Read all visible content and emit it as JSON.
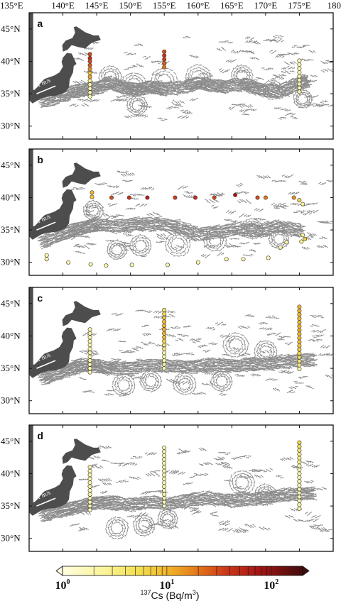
{
  "longitude_labels": [
    "135°E",
    "140°E",
    "145°E",
    "150°E",
    "155°E",
    "160°E",
    "165°E",
    "170°E",
    "175°E",
    "180"
  ],
  "latitude_labels": [
    "45°N",
    "40°N",
    "35°N",
    "30°N"
  ],
  "scale_arrow_label": "1 m/s",
  "colorbar": {
    "tick_labels": [
      "10",
      "10",
      "10"
    ],
    "tick_exponents": [
      "0",
      "1",
      "2"
    ],
    "title_prefix": "137",
    "title_main": "Cs (Bq/m",
    "title_exp": "3",
    "title_suffix": ")",
    "scale": "log",
    "range": [
      1,
      200
    ]
  },
  "colors": {
    "land": "#4d4d4d",
    "vectors": "#8c8c8c",
    "marker_low": "#fffbd0",
    "marker_mid": "#e8a020",
    "marker_high": "#b01010",
    "marker_max": "#4a0c0c"
  },
  "panels": [
    {
      "letter": "a",
      "stations": [
        {
          "lon": 144,
          "lat": 41.1,
          "cs": 30
        },
        {
          "lon": 144,
          "lat": 40.5,
          "cs": 45
        },
        {
          "lon": 144,
          "lat": 40.0,
          "cs": 30
        },
        {
          "lon": 144,
          "lat": 39.4,
          "cs": 25
        },
        {
          "lon": 144,
          "lat": 38.8,
          "cs": 15
        },
        {
          "lon": 144,
          "lat": 38.2,
          "cs": 8
        },
        {
          "lon": 144,
          "lat": 37.6,
          "cs": 12
        },
        {
          "lon": 144,
          "lat": 37.0,
          "cs": 3
        },
        {
          "lon": 144,
          "lat": 36.4,
          "cs": 2
        },
        {
          "lon": 144,
          "lat": 35.8,
          "cs": 2
        },
        {
          "lon": 144,
          "lat": 35.2,
          "cs": 2
        },
        {
          "lon": 144,
          "lat": 34.6,
          "cs": 2
        },
        {
          "lon": 155,
          "lat": 41.5,
          "cs": 30
        },
        {
          "lon": 155,
          "lat": 40.9,
          "cs": 40
        },
        {
          "lon": 155,
          "lat": 40.3,
          "cs": 35
        },
        {
          "lon": 155,
          "lat": 39.7,
          "cs": 25
        },
        {
          "lon": 155,
          "lat": 39.1,
          "cs": 20
        },
        {
          "lon": 175,
          "lat": 40.1,
          "cs": 2
        },
        {
          "lon": 175,
          "lat": 39.5,
          "cs": 2
        },
        {
          "lon": 175,
          "lat": 38.9,
          "cs": 2
        },
        {
          "lon": 175,
          "lat": 38.3,
          "cs": 2
        },
        {
          "lon": 175,
          "lat": 37.7,
          "cs": 2
        },
        {
          "lon": 175,
          "lat": 37.1,
          "cs": 2
        },
        {
          "lon": 175,
          "lat": 36.5,
          "cs": 2
        },
        {
          "lon": 175,
          "lat": 35.9,
          "cs": 2
        },
        {
          "lon": 175,
          "lat": 35.3,
          "cs": 2
        }
      ]
    },
    {
      "letter": "b",
      "stations": [
        {
          "lon": 144.3,
          "lat": 40.8,
          "cs": 10
        },
        {
          "lon": 144.3,
          "lat": 40.1,
          "cs": 8
        },
        {
          "lon": 147.2,
          "lat": 40.0,
          "cs": 30
        },
        {
          "lon": 149.8,
          "lat": 40.0,
          "cs": 40
        },
        {
          "lon": 152.5,
          "lat": 40.0,
          "cs": 60
        },
        {
          "lon": 156.6,
          "lat": 40.0,
          "cs": 35
        },
        {
          "lon": 159.6,
          "lat": 40.0,
          "cs": 45
        },
        {
          "lon": 162.4,
          "lat": 40.0,
          "cs": 30
        },
        {
          "lon": 165.5,
          "lat": 40.4,
          "cs": 70
        },
        {
          "lon": 168.8,
          "lat": 40.0,
          "cs": 30
        },
        {
          "lon": 170.0,
          "lat": 40.0,
          "cs": 20
        },
        {
          "lon": 174.2,
          "lat": 40.0,
          "cs": 15
        },
        {
          "lon": 175.0,
          "lat": 39.6,
          "cs": 6
        },
        {
          "lon": 175.5,
          "lat": 39.0,
          "cs": 3
        },
        {
          "lon": 175.5,
          "lat": 34.2,
          "cs": 3
        },
        {
          "lon": 175.8,
          "lat": 33.6,
          "cs": 7
        },
        {
          "lon": 175.3,
          "lat": 33.2,
          "cs": 3
        },
        {
          "lon": 173.1,
          "lat": 33.1,
          "cs": 2
        },
        {
          "lon": 172.2,
          "lat": 32.3,
          "cs": 2
        },
        {
          "lon": 170.4,
          "lat": 30.7,
          "cs": 2
        },
        {
          "lon": 166.7,
          "lat": 30.5,
          "cs": 2
        },
        {
          "lon": 164.2,
          "lat": 30.5,
          "cs": 2
        },
        {
          "lon": 160.0,
          "lat": 30.0,
          "cs": 2
        },
        {
          "lon": 155.5,
          "lat": 29.6,
          "cs": 2
        },
        {
          "lon": 150.2,
          "lat": 29.6,
          "cs": 2
        },
        {
          "lon": 146.4,
          "lat": 29.5,
          "cs": 2
        },
        {
          "lon": 144.1,
          "lat": 29.7,
          "cs": 2
        },
        {
          "lon": 140.8,
          "lat": 30.0,
          "cs": 2
        },
        {
          "lon": 137.6,
          "lat": 30.5,
          "cs": 2
        },
        {
          "lon": 137.6,
          "lat": 31.1,
          "cs": 2
        }
      ]
    },
    {
      "letter": "c",
      "stations": [
        {
          "lon": 144,
          "lat": 41.0,
          "cs": 2
        },
        {
          "lon": 144,
          "lat": 40.4,
          "cs": 2
        },
        {
          "lon": 144,
          "lat": 39.8,
          "cs": 2
        },
        {
          "lon": 144,
          "lat": 39.2,
          "cs": 2
        },
        {
          "lon": 144,
          "lat": 38.6,
          "cs": 2
        },
        {
          "lon": 144,
          "lat": 38.0,
          "cs": 2
        },
        {
          "lon": 144,
          "lat": 37.4,
          "cs": 2
        },
        {
          "lon": 144,
          "lat": 36.8,
          "cs": 2
        },
        {
          "lon": 144,
          "lat": 36.2,
          "cs": 2
        },
        {
          "lon": 144,
          "lat": 35.6,
          "cs": 2
        },
        {
          "lon": 144,
          "lat": 35.0,
          "cs": 2
        },
        {
          "lon": 144,
          "lat": 34.4,
          "cs": 2
        },
        {
          "lon": 155,
          "lat": 44.0,
          "cs": 4
        },
        {
          "lon": 155,
          "lat": 43.4,
          "cs": 5
        },
        {
          "lon": 155,
          "lat": 42.8,
          "cs": 8
        },
        {
          "lon": 155,
          "lat": 42.2,
          "cs": 9
        },
        {
          "lon": 155,
          "lat": 41.6,
          "cs": 10
        },
        {
          "lon": 155,
          "lat": 41.0,
          "cs": 10
        },
        {
          "lon": 155,
          "lat": 40.4,
          "cs": 10
        },
        {
          "lon": 155,
          "lat": 39.8,
          "cs": 9
        },
        {
          "lon": 155,
          "lat": 39.2,
          "cs": 6
        },
        {
          "lon": 155,
          "lat": 38.6,
          "cs": 4
        },
        {
          "lon": 155,
          "lat": 38.0,
          "cs": 3
        },
        {
          "lon": 155,
          "lat": 37.4,
          "cs": 2
        },
        {
          "lon": 155,
          "lat": 36.8,
          "cs": 2
        },
        {
          "lon": 155,
          "lat": 36.2,
          "cs": 2
        },
        {
          "lon": 155,
          "lat": 35.6,
          "cs": 2
        },
        {
          "lon": 155,
          "lat": 35.0,
          "cs": 2
        },
        {
          "lon": 175,
          "lat": 44.5,
          "cs": 10
        },
        {
          "lon": 175,
          "lat": 43.9,
          "cs": 10
        },
        {
          "lon": 175,
          "lat": 43.3,
          "cs": 10
        },
        {
          "lon": 175,
          "lat": 42.7,
          "cs": 9
        },
        {
          "lon": 175,
          "lat": 42.1,
          "cs": 9
        },
        {
          "lon": 175,
          "lat": 41.5,
          "cs": 10
        },
        {
          "lon": 175,
          "lat": 40.9,
          "cs": 11
        },
        {
          "lon": 175,
          "lat": 40.3,
          "cs": 10
        },
        {
          "lon": 175,
          "lat": 39.7,
          "cs": 9
        },
        {
          "lon": 175,
          "lat": 39.1,
          "cs": 9
        },
        {
          "lon": 175,
          "lat": 38.5,
          "cs": 8
        },
        {
          "lon": 175,
          "lat": 37.9,
          "cs": 7
        },
        {
          "lon": 175,
          "lat": 37.3,
          "cs": 6
        },
        {
          "lon": 175,
          "lat": 36.7,
          "cs": 5
        },
        {
          "lon": 175,
          "lat": 36.1,
          "cs": 4
        },
        {
          "lon": 175,
          "lat": 35.5,
          "cs": 3
        },
        {
          "lon": 175,
          "lat": 34.9,
          "cs": 2
        }
      ]
    },
    {
      "letter": "d",
      "stations": [
        {
          "lon": 144,
          "lat": 41.0,
          "cs": 2
        },
        {
          "lon": 144,
          "lat": 40.4,
          "cs": 2
        },
        {
          "lon": 144,
          "lat": 39.8,
          "cs": 2
        },
        {
          "lon": 144,
          "lat": 39.2,
          "cs": 2
        },
        {
          "lon": 144,
          "lat": 38.6,
          "cs": 2
        },
        {
          "lon": 144,
          "lat": 38.0,
          "cs": 2
        },
        {
          "lon": 144,
          "lat": 37.4,
          "cs": 2
        },
        {
          "lon": 144,
          "lat": 36.8,
          "cs": 2
        },
        {
          "lon": 144,
          "lat": 36.2,
          "cs": 2
        },
        {
          "lon": 144,
          "lat": 35.6,
          "cs": 2
        },
        {
          "lon": 144,
          "lat": 35.0,
          "cs": 2
        },
        {
          "lon": 144,
          "lat": 34.4,
          "cs": 1.5
        },
        {
          "lon": 155,
          "lat": 44.0,
          "cs": 2
        },
        {
          "lon": 155,
          "lat": 43.4,
          "cs": 2
        },
        {
          "lon": 155,
          "lat": 42.8,
          "cs": 2
        },
        {
          "lon": 155,
          "lat": 42.2,
          "cs": 2
        },
        {
          "lon": 155,
          "lat": 41.6,
          "cs": 2
        },
        {
          "lon": 155,
          "lat": 41.0,
          "cs": 2
        },
        {
          "lon": 155,
          "lat": 40.4,
          "cs": 2
        },
        {
          "lon": 155,
          "lat": 39.8,
          "cs": 2
        },
        {
          "lon": 155,
          "lat": 39.2,
          "cs": 2
        },
        {
          "lon": 155,
          "lat": 38.6,
          "cs": 2
        },
        {
          "lon": 155,
          "lat": 38.0,
          "cs": 2
        },
        {
          "lon": 155,
          "lat": 37.4,
          "cs": 2
        },
        {
          "lon": 155,
          "lat": 36.8,
          "cs": 2
        },
        {
          "lon": 155,
          "lat": 36.2,
          "cs": 2
        },
        {
          "lon": 155,
          "lat": 35.6,
          "cs": 2
        },
        {
          "lon": 155,
          "lat": 35.0,
          "cs": 1.5
        },
        {
          "lon": 175,
          "lat": 44.8,
          "cs": 6
        },
        {
          "lon": 175,
          "lat": 44.2,
          "cs": 5
        },
        {
          "lon": 175,
          "lat": 43.6,
          "cs": 4
        },
        {
          "lon": 175,
          "lat": 43.0,
          "cs": 3
        },
        {
          "lon": 175,
          "lat": 42.4,
          "cs": 3
        },
        {
          "lon": 175,
          "lat": 41.8,
          "cs": 3
        },
        {
          "lon": 175,
          "lat": 41.2,
          "cs": 2
        },
        {
          "lon": 175,
          "lat": 40.6,
          "cs": 2
        },
        {
          "lon": 175,
          "lat": 40.0,
          "cs": 2
        },
        {
          "lon": 175,
          "lat": 39.4,
          "cs": 2
        },
        {
          "lon": 175,
          "lat": 38.8,
          "cs": 2
        },
        {
          "lon": 175,
          "lat": 38.2,
          "cs": 2
        },
        {
          "lon": 175,
          "lat": 37.6,
          "cs": 2
        },
        {
          "lon": 175,
          "lat": 37.0,
          "cs": 2
        },
        {
          "lon": 175,
          "lat": 36.4,
          "cs": 2
        },
        {
          "lon": 175,
          "lat": 35.8,
          "cs": 2
        },
        {
          "lon": 175,
          "lat": 35.2,
          "cs": 2
        },
        {
          "lon": 175,
          "lat": 34.6,
          "cs": 2
        }
      ]
    }
  ]
}
